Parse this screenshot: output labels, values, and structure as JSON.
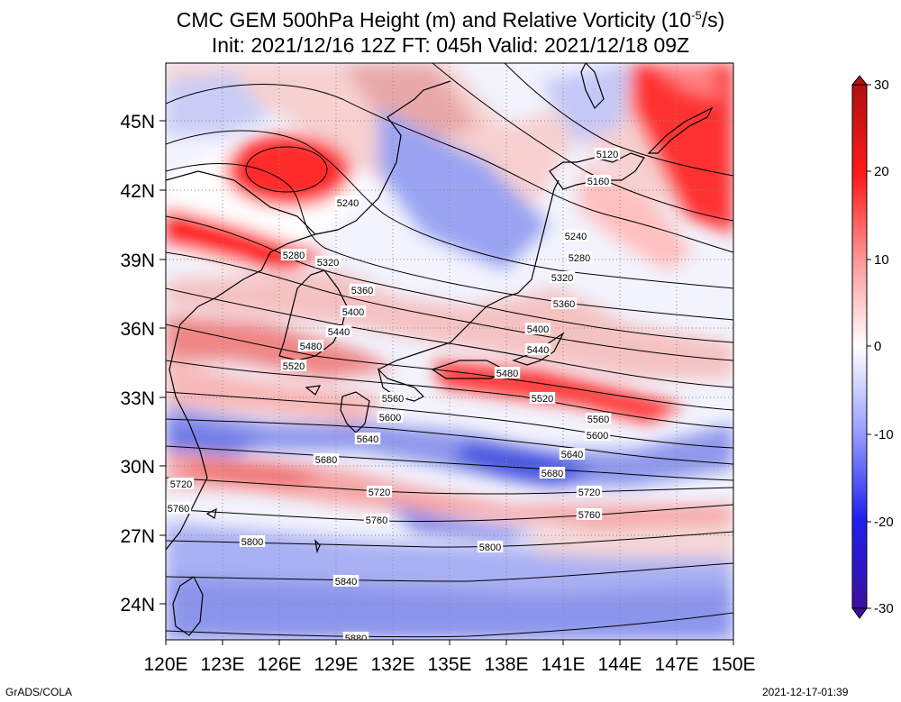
{
  "title": {
    "line1_prefix": "CMC GEM 500hPa Height (m) and Relative Vorticity (10",
    "line1_exp": "-5",
    "line1_suffix": "/s)",
    "line2": "Init: 2021/12/16 12Z  FT: 045h  Valid: 2021/12/18 09Z"
  },
  "axes": {
    "lat_labels": [
      "45N",
      "42N",
      "39N",
      "36N",
      "33N",
      "30N",
      "27N",
      "24N"
    ],
    "lon_labels": [
      "120E",
      "123E",
      "126E",
      "129E",
      "132E",
      "135E",
      "138E",
      "141E",
      "144E",
      "147E",
      "150E"
    ]
  },
  "colorbar": {
    "ticks": [
      "30",
      "20",
      "10",
      "0",
      "-10",
      "-20",
      "-30"
    ],
    "colors": {
      "max": "#b01010",
      "high": "#ff1a1a",
      "mid_pos": "#ff9a9a",
      "zero": "#ffffff",
      "mid_neg": "#9aa0ff",
      "low": "#2020ee",
      "min": "#3a10a0"
    }
  },
  "contour_labels": [
    {
      "text": "5120"
    },
    {
      "text": "5160"
    },
    {
      "text": "5240"
    },
    {
      "text": "5240"
    },
    {
      "text": "5280"
    },
    {
      "text": "5280"
    },
    {
      "text": "5320"
    },
    {
      "text": "5320"
    },
    {
      "text": "5360"
    },
    {
      "text": "5360"
    },
    {
      "text": "5400"
    },
    {
      "text": "5400"
    },
    {
      "text": "5440"
    },
    {
      "text": "5440"
    },
    {
      "text": "5480"
    },
    {
      "text": "5480"
    },
    {
      "text": "5520"
    },
    {
      "text": "5520"
    },
    {
      "text": "5560"
    },
    {
      "text": "5560"
    },
    {
      "text": "5600"
    },
    {
      "text": "5600"
    },
    {
      "text": "5640"
    },
    {
      "text": "5640"
    },
    {
      "text": "5680"
    },
    {
      "text": "5680"
    },
    {
      "text": "5720"
    },
    {
      "text": "5720"
    },
    {
      "text": "5720"
    },
    {
      "text": "5760"
    },
    {
      "text": "5760"
    },
    {
      "text": "5760"
    },
    {
      "text": "5800"
    },
    {
      "text": "5800"
    },
    {
      "text": "5840"
    },
    {
      "text": "5880"
    }
  ],
  "footer": {
    "left": "GrADS/COLA",
    "right": "2021-12-17-01:39"
  }
}
